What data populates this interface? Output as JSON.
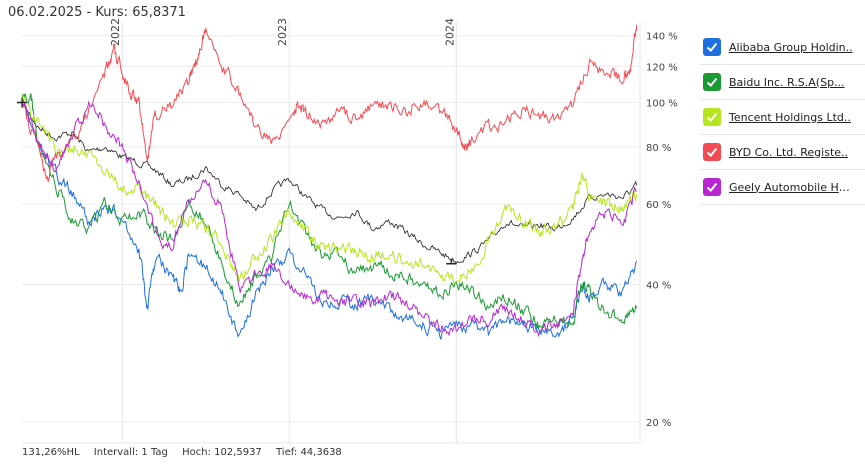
{
  "header": {
    "date": "06.02.2025",
    "separator": "-",
    "price_label": "Kurs:",
    "price_value": "65,8371"
  },
  "legend": {
    "items": [
      {
        "label": "Alibaba Group Holdin..",
        "color": "#1f6fe0"
      },
      {
        "label": "Baidu Inc. R.S.A(Sp...",
        "color": "#1a9a33"
      },
      {
        "label": "Tencent Holdings Ltd..",
        "color": "#b4e61e"
      },
      {
        "label": "BYD Co. Ltd. Registe..",
        "color": "#f44a52"
      },
      {
        "label": "Geely Automobile Hol..",
        "color": "#b627d2"
      }
    ]
  },
  "footer": {
    "hl": "131,26%HL",
    "interval": "Intervall: 1 Tag",
    "high": "Hoch: 102,5937",
    "low": "Tief: 44,3638"
  },
  "chart_data": {
    "type": "line",
    "y_scale": "log",
    "ylim": [
      18,
      150
    ],
    "x_range": [
      2021.4,
      2025.1
    ],
    "y_ticks": [
      {
        "value": 140,
        "label": "140 %"
      },
      {
        "value": 120,
        "label": "120 %"
      },
      {
        "value": 100,
        "label": "100 %"
      },
      {
        "value": 80,
        "label": "80 %"
      },
      {
        "value": 60,
        "label": "60 %"
      },
      {
        "value": 40,
        "label": "40 %"
      },
      {
        "value": 20,
        "label": "20 %"
      }
    ],
    "x_year_labels": [
      {
        "value": 2022,
        "label": "2022"
      },
      {
        "value": 2023,
        "label": "2023"
      },
      {
        "value": 2024,
        "label": "2024"
      }
    ],
    "min_marker": {
      "x": 2023.97,
      "y": 44.4
    },
    "benchmark": {
      "name": "Kurs",
      "color": "#222222",
      "points": [
        [
          2021.4,
          100
        ],
        [
          2021.5,
          88
        ],
        [
          2021.6,
          84
        ],
        [
          2021.7,
          86
        ],
        [
          2021.8,
          78
        ],
        [
          2021.9,
          80
        ],
        [
          2022.0,
          76
        ],
        [
          2022.1,
          74
        ],
        [
          2022.2,
          71
        ],
        [
          2022.3,
          66
        ],
        [
          2022.4,
          68
        ],
        [
          2022.5,
          72
        ],
        [
          2022.6,
          66
        ],
        [
          2022.7,
          63
        ],
        [
          2022.8,
          58
        ],
        [
          2022.9,
          64
        ],
        [
          2023.0,
          68
        ],
        [
          2023.1,
          62
        ],
        [
          2023.2,
          58
        ],
        [
          2023.3,
          56
        ],
        [
          2023.4,
          58
        ],
        [
          2023.5,
          53
        ],
        [
          2023.6,
          55
        ],
        [
          2023.7,
          52
        ],
        [
          2023.8,
          49
        ],
        [
          2023.9,
          47
        ],
        [
          2024.0,
          45
        ],
        [
          2024.1,
          47
        ],
        [
          2024.2,
          50
        ],
        [
          2024.3,
          55
        ],
        [
          2024.4,
          53
        ],
        [
          2024.5,
          54
        ],
        [
          2024.6,
          53
        ],
        [
          2024.7,
          56
        ],
        [
          2024.8,
          62
        ],
        [
          2024.9,
          63
        ],
        [
          2025.0,
          62
        ],
        [
          2025.08,
          65.8
        ]
      ]
    },
    "series": [
      {
        "name": "Alibaba Group Holdin..",
        "color": "#1f6fe0",
        "points": [
          [
            2021.4,
            100
          ],
          [
            2021.5,
            82
          ],
          [
            2021.6,
            70
          ],
          [
            2021.7,
            64
          ],
          [
            2021.8,
            54
          ],
          [
            2021.9,
            60
          ],
          [
            2022.0,
            56
          ],
          [
            2022.1,
            48
          ],
          [
            2022.15,
            35
          ],
          [
            2022.2,
            46
          ],
          [
            2022.3,
            42
          ],
          [
            2022.35,
            38
          ],
          [
            2022.4,
            46
          ],
          [
            2022.5,
            44
          ],
          [
            2022.6,
            38
          ],
          [
            2022.7,
            31
          ],
          [
            2022.8,
            38
          ],
          [
            2022.9,
            44
          ],
          [
            2023.0,
            46
          ],
          [
            2023.1,
            42
          ],
          [
            2023.2,
            36
          ],
          [
            2023.3,
            37
          ],
          [
            2023.4,
            36
          ],
          [
            2023.5,
            37
          ],
          [
            2023.6,
            35
          ],
          [
            2023.7,
            34
          ],
          [
            2023.8,
            33
          ],
          [
            2023.9,
            31
          ],
          [
            2024.0,
            32
          ],
          [
            2024.1,
            33
          ],
          [
            2024.2,
            31
          ],
          [
            2024.3,
            34
          ],
          [
            2024.4,
            32
          ],
          [
            2024.5,
            32
          ],
          [
            2024.6,
            31
          ],
          [
            2024.7,
            34
          ],
          [
            2024.75,
            40
          ],
          [
            2024.8,
            38
          ],
          [
            2024.9,
            40
          ],
          [
            2025.0,
            38
          ],
          [
            2025.08,
            45
          ]
        ]
      },
      {
        "name": "Baidu Inc. R.S.A(Sp...",
        "color": "#1a9a33",
        "points": [
          [
            2021.4,
            100
          ],
          [
            2021.45,
            105
          ],
          [
            2021.5,
            80
          ],
          [
            2021.6,
            66
          ],
          [
            2021.7,
            56
          ],
          [
            2021.8,
            52
          ],
          [
            2021.9,
            60
          ],
          [
            2022.0,
            55
          ],
          [
            2022.1,
            58
          ],
          [
            2022.2,
            53
          ],
          [
            2022.3,
            50
          ],
          [
            2022.4,
            60
          ],
          [
            2022.5,
            55
          ],
          [
            2022.6,
            44
          ],
          [
            2022.7,
            36
          ],
          [
            2022.8,
            42
          ],
          [
            2022.9,
            47
          ],
          [
            2023.0,
            60
          ],
          [
            2023.1,
            51
          ],
          [
            2023.2,
            46
          ],
          [
            2023.3,
            47
          ],
          [
            2023.4,
            42
          ],
          [
            2023.5,
            44
          ],
          [
            2023.6,
            43
          ],
          [
            2023.7,
            41
          ],
          [
            2023.8,
            40
          ],
          [
            2023.9,
            38
          ],
          [
            2024.0,
            40
          ],
          [
            2024.1,
            38
          ],
          [
            2024.2,
            36
          ],
          [
            2024.3,
            38
          ],
          [
            2024.4,
            35
          ],
          [
            2024.5,
            33
          ],
          [
            2024.6,
            34
          ],
          [
            2024.7,
            33
          ],
          [
            2024.75,
            40
          ],
          [
            2024.8,
            38
          ],
          [
            2024.9,
            35
          ],
          [
            2025.0,
            33
          ],
          [
            2025.08,
            35.5
          ]
        ]
      },
      {
        "name": "Tencent Holdings Ltd..",
        "color": "#b4e61e",
        "points": [
          [
            2021.4,
            100
          ],
          [
            2021.5,
            90
          ],
          [
            2021.6,
            78
          ],
          [
            2021.7,
            80
          ],
          [
            2021.8,
            76
          ],
          [
            2021.9,
            72
          ],
          [
            2022.0,
            66
          ],
          [
            2022.1,
            64
          ],
          [
            2022.2,
            60
          ],
          [
            2022.3,
            54
          ],
          [
            2022.4,
            56
          ],
          [
            2022.5,
            53
          ],
          [
            2022.6,
            50
          ],
          [
            2022.7,
            40
          ],
          [
            2022.8,
            46
          ],
          [
            2022.9,
            50
          ],
          [
            2023.0,
            58
          ],
          [
            2023.1,
            52
          ],
          [
            2023.2,
            48
          ],
          [
            2023.3,
            47
          ],
          [
            2023.4,
            48
          ],
          [
            2023.5,
            46
          ],
          [
            2023.6,
            47
          ],
          [
            2023.7,
            44
          ],
          [
            2023.8,
            45
          ],
          [
            2023.9,
            42
          ],
          [
            2024.0,
            41
          ],
          [
            2024.1,
            44
          ],
          [
            2024.2,
            50
          ],
          [
            2024.3,
            58
          ],
          [
            2024.4,
            55
          ],
          [
            2024.5,
            52
          ],
          [
            2024.6,
            54
          ],
          [
            2024.7,
            58
          ],
          [
            2024.75,
            70
          ],
          [
            2024.8,
            62
          ],
          [
            2024.9,
            60
          ],
          [
            2025.0,
            59
          ],
          [
            2025.08,
            63
          ]
        ]
      },
      {
        "name": "BYD Co. Ltd. Registe..",
        "color": "#f44a52",
        "points": [
          [
            2021.4,
            100
          ],
          [
            2021.5,
            78
          ],
          [
            2021.55,
            68
          ],
          [
            2021.6,
            75
          ],
          [
            2021.7,
            82
          ],
          [
            2021.8,
            96
          ],
          [
            2021.9,
            118
          ],
          [
            2021.95,
            130
          ],
          [
            2022.0,
            116
          ],
          [
            2022.05,
            105
          ],
          [
            2022.1,
            100
          ],
          [
            2022.15,
            75
          ],
          [
            2022.2,
            94
          ],
          [
            2022.3,
            98
          ],
          [
            2022.4,
            112
          ],
          [
            2022.45,
            125
          ],
          [
            2022.5,
            144
          ],
          [
            2022.6,
            120
          ],
          [
            2022.7,
            105
          ],
          [
            2022.8,
            88
          ],
          [
            2022.9,
            82
          ],
          [
            2023.0,
            92
          ],
          [
            2023.05,
            100
          ],
          [
            2023.1,
            95
          ],
          [
            2023.2,
            90
          ],
          [
            2023.3,
            96
          ],
          [
            2023.4,
            92
          ],
          [
            2023.5,
            98
          ],
          [
            2023.6,
            100
          ],
          [
            2023.7,
            96
          ],
          [
            2023.8,
            102
          ],
          [
            2023.9,
            96
          ],
          [
            2024.0,
            88
          ],
          [
            2024.05,
            80
          ],
          [
            2024.1,
            82
          ],
          [
            2024.2,
            88
          ],
          [
            2024.3,
            92
          ],
          [
            2024.4,
            96
          ],
          [
            2024.5,
            94
          ],
          [
            2024.6,
            92
          ],
          [
            2024.7,
            100
          ],
          [
            2024.8,
            122
          ],
          [
            2024.9,
            115
          ],
          [
            2025.0,
            112
          ],
          [
            2025.05,
            122
          ],
          [
            2025.08,
            148
          ]
        ]
      },
      {
        "name": "Geely Automobile Hol..",
        "color": "#b627d2",
        "points": [
          [
            2021.4,
            100
          ],
          [
            2021.5,
            82
          ],
          [
            2021.6,
            72
          ],
          [
            2021.7,
            86
          ],
          [
            2021.8,
            98
          ],
          [
            2021.9,
            90
          ],
          [
            2022.0,
            80
          ],
          [
            2022.1,
            66
          ],
          [
            2022.2,
            52
          ],
          [
            2022.3,
            48
          ],
          [
            2022.4,
            62
          ],
          [
            2022.5,
            68
          ],
          [
            2022.6,
            58
          ],
          [
            2022.7,
            39
          ],
          [
            2022.8,
            42
          ],
          [
            2022.9,
            44
          ],
          [
            2023.0,
            40
          ],
          [
            2023.1,
            37
          ],
          [
            2023.2,
            38
          ],
          [
            2023.3,
            36
          ],
          [
            2023.4,
            37
          ],
          [
            2023.5,
            36
          ],
          [
            2023.6,
            38
          ],
          [
            2023.7,
            36
          ],
          [
            2023.8,
            34
          ],
          [
            2023.9,
            32
          ],
          [
            2024.0,
            32
          ],
          [
            2024.1,
            33
          ],
          [
            2024.2,
            34
          ],
          [
            2024.3,
            35
          ],
          [
            2024.4,
            34
          ],
          [
            2024.5,
            31
          ],
          [
            2024.6,
            33
          ],
          [
            2024.7,
            35
          ],
          [
            2024.75,
            44
          ],
          [
            2024.8,
            52
          ],
          [
            2024.9,
            58
          ],
          [
            2025.0,
            55
          ],
          [
            2025.08,
            64
          ]
        ]
      }
    ]
  }
}
